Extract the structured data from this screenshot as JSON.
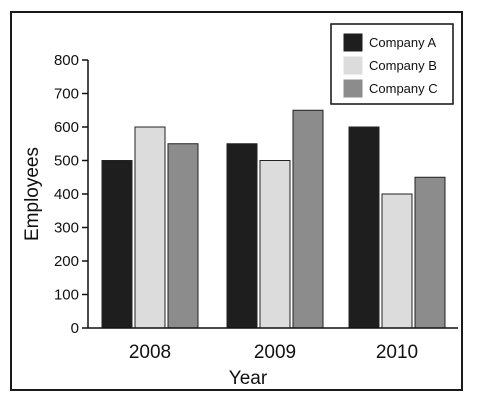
{
  "chart_data": {
    "type": "bar",
    "title": "",
    "xlabel": "Year",
    "ylabel": "Employees",
    "categories": [
      "2008",
      "2009",
      "2010"
    ],
    "ylim": [
      0,
      800
    ],
    "yticks": [
      0,
      100,
      200,
      300,
      400,
      500,
      600,
      700,
      800
    ],
    "grid": false,
    "legend_position": "top-right",
    "series": [
      {
        "name": "Company A",
        "color": "#1e1e1e",
        "values": [
          500,
          550,
          600
        ]
      },
      {
        "name": "Company B",
        "color": "#dcdcdc",
        "values": [
          600,
          500,
          400
        ]
      },
      {
        "name": "Company C",
        "color": "#8c8c8c",
        "values": [
          550,
          650,
          450
        ]
      }
    ]
  }
}
